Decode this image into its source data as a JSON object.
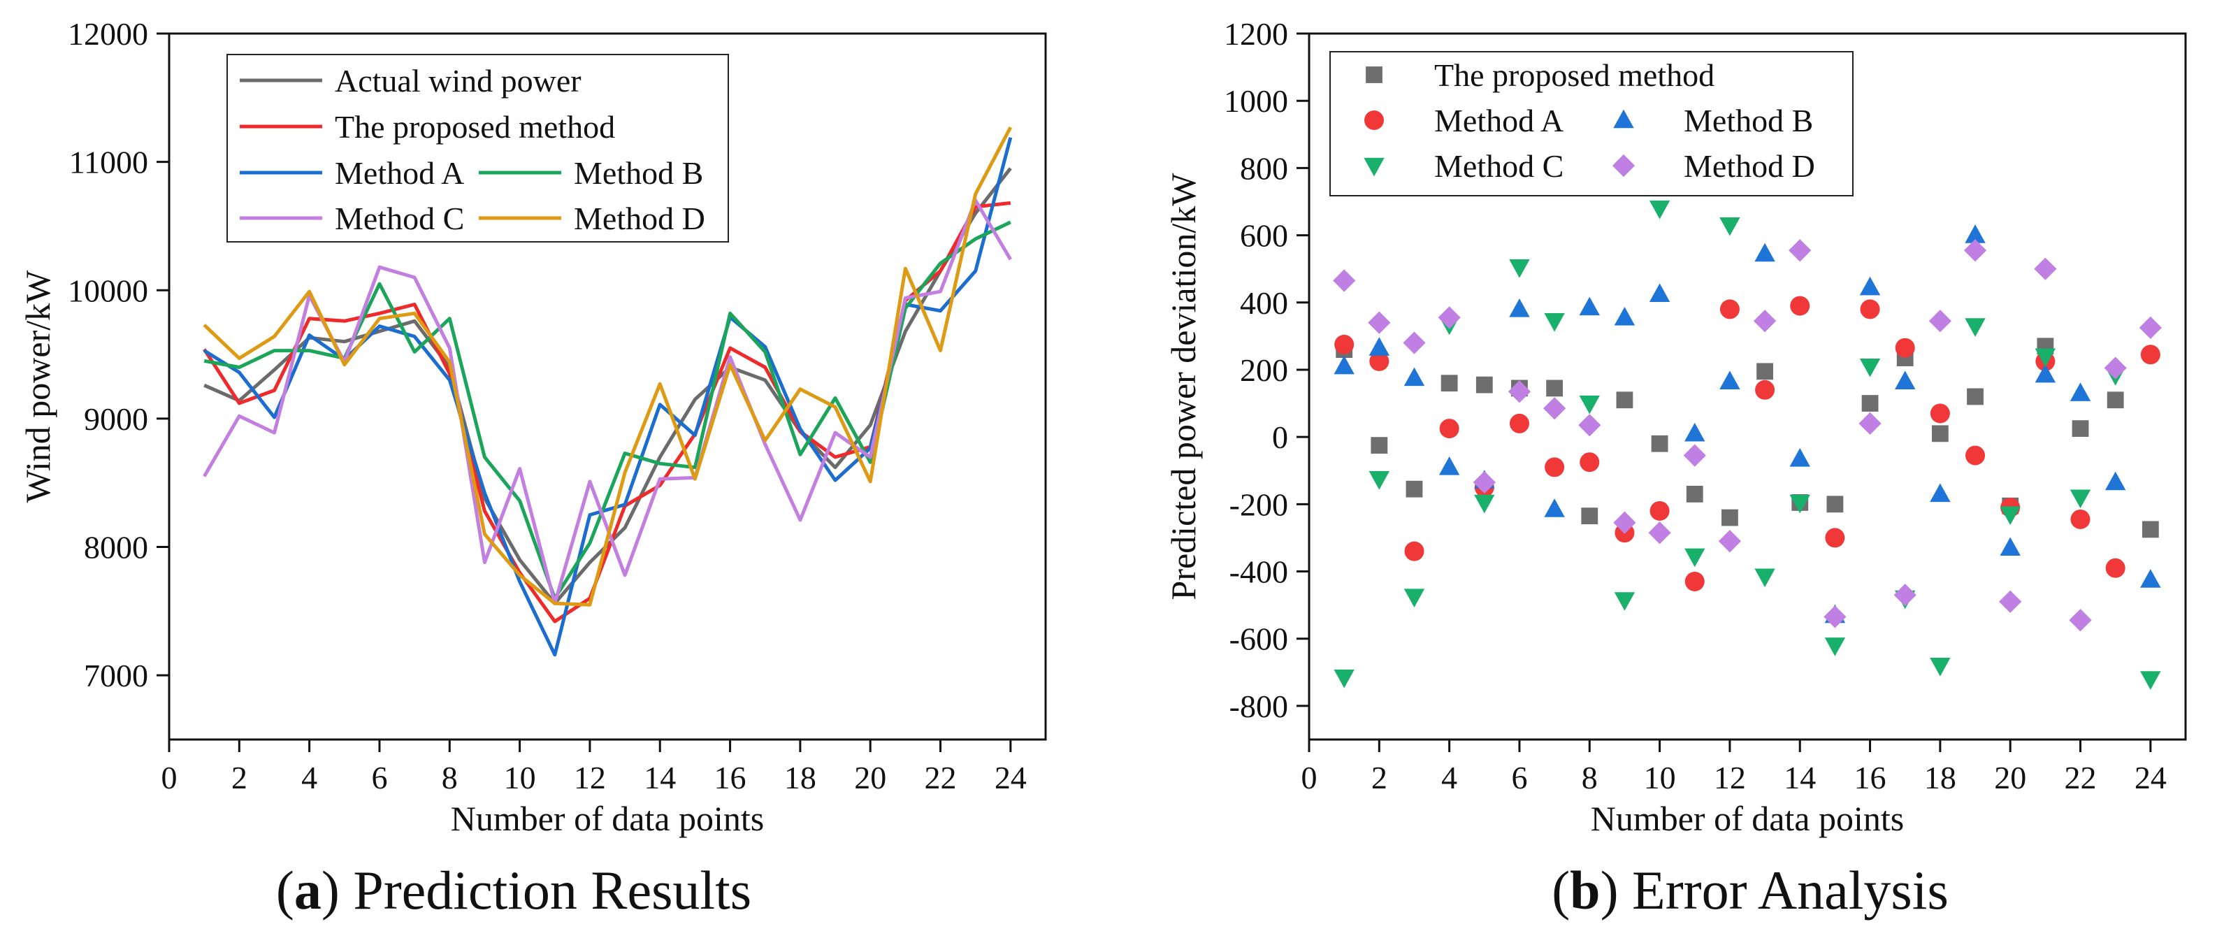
{
  "chart_data": [
    {
      "type": "line",
      "caption": {
        "letter": "a",
        "text": " Prediction Results"
      },
      "xlabel": "Number of data points",
      "ylabel": "Wind power/kW",
      "xlim": [
        0,
        25
      ],
      "ylim": [
        6500,
        12000
      ],
      "xticks": [
        0,
        2,
        4,
        6,
        8,
        10,
        12,
        14,
        16,
        18,
        20,
        22,
        24
      ],
      "yticks": [
        7000,
        8000,
        9000,
        10000,
        11000,
        12000
      ],
      "grid": false,
      "legend_position": "top-left",
      "x": [
        1,
        2,
        3,
        4,
        5,
        6,
        7,
        8,
        9,
        10,
        11,
        12,
        13,
        14,
        15,
        16,
        17,
        18,
        19,
        20,
        21,
        22,
        23,
        24
      ],
      "series": [
        {
          "name": "Actual wind power",
          "color": "#6b6b6b",
          "values": [
            9260,
            9140,
            9380,
            9630,
            9600,
            9680,
            9760,
            9400,
            8380,
            7900,
            7560,
            7880,
            8150,
            8700,
            9150,
            9400,
            9300,
            8900,
            8620,
            8950,
            9680,
            10150,
            10600,
            10950
          ]
        },
        {
          "name": "The proposed method",
          "color": "#ee2a2a",
          "values": [
            9540,
            9120,
            9220,
            9780,
            9760,
            9820,
            9890,
            9350,
            8280,
            7800,
            7420,
            7600,
            8320,
            8480,
            8880,
            9550,
            9400,
            8900,
            8700,
            8780,
            9920,
            10150,
            10650,
            10680
          ]
        },
        {
          "name": "Method A",
          "color": "#1c6dd0",
          "values": [
            9530,
            9360,
            9010,
            9650,
            9460,
            9720,
            9640,
            9300,
            8420,
            7730,
            7160,
            8250,
            8330,
            9110,
            8870,
            9790,
            9560,
            8920,
            8520,
            8770,
            9890,
            9840,
            10150,
            11190
          ]
        },
        {
          "name": "Method B",
          "color": "#1aa55a",
          "values": [
            9450,
            9400,
            9530,
            9530,
            9470,
            10050,
            9520,
            9780,
            8700,
            8360,
            7600,
            8030,
            8730,
            8650,
            8620,
            9820,
            9520,
            8720,
            9160,
            8660,
            9860,
            10210,
            10400,
            10530
          ]
        },
        {
          "name": "Method C",
          "color": "#c27fe0",
          "values": [
            8550,
            9020,
            8890,
            9960,
            9440,
            10180,
            10100,
            9550,
            7880,
            8610,
            7560,
            8510,
            7780,
            8530,
            8540,
            9480,
            8800,
            8210,
            8890,
            8700,
            9940,
            9990,
            10700,
            10240
          ]
        },
        {
          "name": "Method D",
          "color": "#dd9a12",
          "values": [
            9730,
            9470,
            9640,
            9990,
            9420,
            9780,
            9820,
            9440,
            8100,
            7780,
            7560,
            7550,
            8580,
            9270,
            8530,
            9420,
            8830,
            9230,
            9090,
            8510,
            10170,
            9530,
            10750,
            11270
          ]
        }
      ]
    },
    {
      "type": "scatter",
      "caption": {
        "letter": "b",
        "text": " Error Analysis"
      },
      "xlabel": "Number of data points",
      "ylabel": "Predicted power deviation/kW",
      "xlim": [
        0,
        25
      ],
      "ylim": [
        -900,
        1200
      ],
      "xticks": [
        0,
        2,
        4,
        6,
        8,
        10,
        12,
        14,
        16,
        18,
        20,
        22,
        24
      ],
      "yticks": [
        -800,
        -600,
        -400,
        -200,
        0,
        200,
        400,
        600,
        800,
        1000,
        1200
      ],
      "grid": false,
      "legend_position": "top-left",
      "x": [
        1,
        2,
        3,
        4,
        5,
        6,
        7,
        8,
        9,
        10,
        11,
        12,
        13,
        14,
        15,
        16,
        17,
        18,
        19,
        20,
        21,
        22,
        23,
        24
      ],
      "series": [
        {
          "name": "The proposed method",
          "marker": "square",
          "color": "#6e6e6e",
          "values": [
            260,
            -25,
            -155,
            160,
            155,
            145,
            145,
            -235,
            110,
            -20,
            -170,
            -240,
            195,
            -195,
            -200,
            100,
            235,
            10,
            120,
            -205,
            270,
            25,
            110,
            -275
          ]
        },
        {
          "name": "Method A",
          "marker": "circle",
          "color": "#f03838",
          "values": [
            275,
            225,
            -340,
            25,
            -150,
            40,
            -90,
            -75,
            -285,
            -220,
            -430,
            380,
            140,
            390,
            -300,
            380,
            265,
            70,
            -55,
            -210,
            225,
            -245,
            -390,
            245
          ]
        },
        {
          "name": "Method B",
          "marker": "triangle-up",
          "color": "#1f74d8",
          "values": [
            210,
            265,
            175,
            -90,
            -130,
            380,
            -215,
            385,
            355,
            425,
            10,
            165,
            545,
            -65,
            -530,
            445,
            165,
            -170,
            600,
            -330,
            185,
            130,
            -135,
            -425
          ]
        },
        {
          "name": "Method C",
          "marker": "triangle-down",
          "color": "#18b06a",
          "values": [
            -715,
            -125,
            -475,
            335,
            -195,
            505,
            345,
            100,
            -485,
            680,
            -355,
            630,
            -415,
            -195,
            -620,
            210,
            -480,
            -680,
            330,
            -230,
            240,
            -180,
            185,
            -720
          ]
        },
        {
          "name": "Method D",
          "marker": "diamond",
          "color": "#c07fe2",
          "values": [
            465,
            340,
            280,
            355,
            -135,
            135,
            85,
            35,
            -255,
            -285,
            -55,
            -310,
            345,
            555,
            -535,
            40,
            -470,
            345,
            555,
            -490,
            500,
            -545,
            205,
            325
          ]
        }
      ]
    }
  ]
}
